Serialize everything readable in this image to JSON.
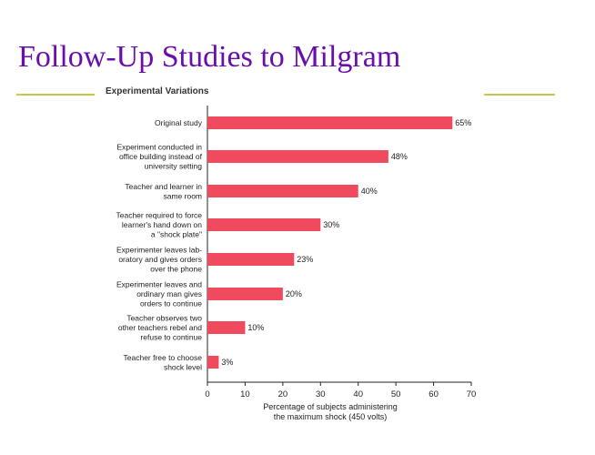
{
  "slide": {
    "title": "Follow-Up Studies to Milgram",
    "rule_color": "#c8c84a",
    "title_color": "#6a0dad"
  },
  "chart_data": {
    "type": "bar",
    "orientation": "horizontal",
    "title": "Experimental Variations",
    "categories": [
      [
        "Original study"
      ],
      [
        "Experiment conducted in",
        "office building instead of",
        "university setting"
      ],
      [
        "Teacher and learner in",
        "same room"
      ],
      [
        "Teacher required to force",
        "learner's hand down on",
        "a \"shock plate\""
      ],
      [
        "Experimenter leaves lab-",
        "oratory and gives orders",
        "over the phone"
      ],
      [
        "Experimenter leaves and",
        "ordinary man gives",
        "orders to continue"
      ],
      [
        "Teacher observes two",
        "other teachers rebel and",
        "refuse to continue"
      ],
      [
        "Teacher free to choose",
        "shock level"
      ]
    ],
    "values": [
      65,
      48,
      40,
      30,
      23,
      20,
      10,
      3
    ],
    "value_labels": [
      "65%",
      "48%",
      "40%",
      "30%",
      "23%",
      "20%",
      "10%",
      "3%"
    ],
    "xticks": [
      0,
      10,
      20,
      30,
      40,
      50,
      60,
      70
    ],
    "xlim": [
      0,
      70
    ],
    "xlabel": [
      "Percentage of subjects administering",
      "the maximum shock (450 volts)"
    ],
    "bar_color": "#f04a5e",
    "grid": false
  }
}
